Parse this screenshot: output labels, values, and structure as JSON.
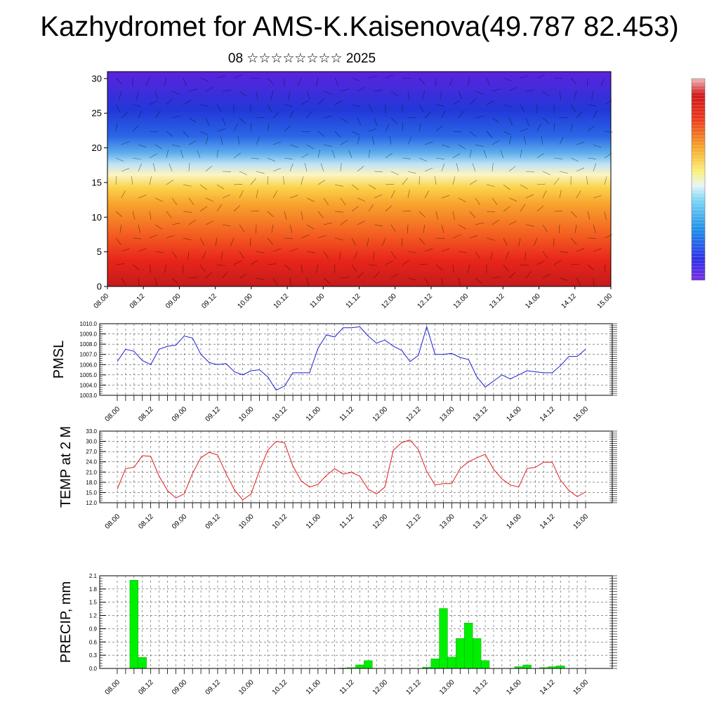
{
  "title": "Kazhydromet for AMS-K.Kaisenova(49.787 82.453)",
  "subtitle": "08 ☆☆☆☆☆☆☆☆ 2025",
  "colors": {
    "pressure_line": "#1f1fd6",
    "temperature_line": "#e31a1c",
    "precip_bar": "#00ee00",
    "precip_bar_edge": "#1a8f1a"
  },
  "chart_data": [
    {
      "type": "heatmap",
      "ylabel": "",
      "ylim": [
        0,
        31
      ],
      "yticks": [
        0,
        5,
        10,
        15,
        20,
        25,
        30
      ],
      "xticks": [
        "08.00",
        "08.12",
        "09.00",
        "09.12",
        "10.00",
        "10.12",
        "11.00",
        "11.12",
        "12.00",
        "12.12",
        "13.00",
        "13.12",
        "14.00",
        "14.12",
        "15.00"
      ],
      "overlay": "wind vectors",
      "colorbar": "rainbow (purple → blue → cyan → yellow → red), no tick labels"
    },
    {
      "type": "line",
      "ylabel": "PMSL",
      "ylim": [
        1003.0,
        1010.0
      ],
      "yticks": [
        "1003.0",
        "1004.0",
        "1005.0",
        "1006.0",
        "1007.0",
        "1008.0",
        "1009.0",
        "1010.0"
      ],
      "xticks": [
        "08.00",
        "08.12",
        "09.00",
        "09.12",
        "10.00",
        "10.12",
        "11.00",
        "11.12",
        "12.00",
        "12.12",
        "13.00",
        "13.12",
        "14.00",
        "14.12",
        "15.00"
      ],
      "x_hours_start": 0,
      "x_hours_step": 3,
      "grid": true,
      "series": [
        {
          "values": [
            1006.3,
            1007.5,
            1007.3,
            1006.4,
            1006.0,
            1007.5,
            1007.8,
            1007.9,
            1008.8,
            1008.6,
            1007.0,
            1006.2,
            1006.0,
            1006.1,
            1005.3,
            1005.0,
            1005.4,
            1005.5,
            1004.8,
            1003.5,
            1003.9,
            1005.2,
            1005.2,
            1005.2,
            1007.6,
            1008.9,
            1008.7,
            1009.6,
            1009.6,
            1009.7,
            1008.8,
            1008.1,
            1008.4,
            1007.8,
            1007.4,
            1006.3,
            1006.9,
            1009.7,
            1007.0,
            1007.0,
            1007.1,
            1006.7,
            1006.5,
            1004.8,
            1003.8,
            1004.4,
            1005.0,
            1004.6,
            1005.0,
            1005.4,
            1005.3,
            1005.2,
            1005.2,
            1005.9,
            1006.8,
            1006.8,
            1007.5
          ]
        }
      ]
    },
    {
      "type": "line",
      "ylabel": "TEMP at 2 M",
      "ylim": [
        12.0,
        33.0
      ],
      "yticks": [
        "12.0",
        "15.0",
        "18.0",
        "21.0",
        "24.0",
        "27.0",
        "30.0",
        "33.0"
      ],
      "xticks": [
        "08.00",
        "08.12",
        "09.00",
        "09.12",
        "10.00",
        "10.12",
        "11.00",
        "11.12",
        "12.00",
        "12.12",
        "13.00",
        "13.12",
        "14.00",
        "14.12",
        "15.00"
      ],
      "x_hours_start": 0,
      "x_hours_step": 3,
      "grid": true,
      "series": [
        {
          "values": [
            16.0,
            22.0,
            22.4,
            25.8,
            25.6,
            19.8,
            15.6,
            13.4,
            14.6,
            20.6,
            25.2,
            26.8,
            26.0,
            20.6,
            15.8,
            12.8,
            14.6,
            21.4,
            27.4,
            30.0,
            29.6,
            22.8,
            18.4,
            16.6,
            17.4,
            20.0,
            22.0,
            20.4,
            20.9,
            19.8,
            16.0,
            14.6,
            16.6,
            27.4,
            29.6,
            30.4,
            27.6,
            21.2,
            17.2,
            17.6,
            17.6,
            22.0,
            24.0,
            25.2,
            26.2,
            21.8,
            19.0,
            17.2,
            16.6,
            22.0,
            22.4,
            23.9,
            23.9,
            18.6,
            15.6,
            13.8,
            15.2
          ]
        }
      ]
    },
    {
      "type": "bar",
      "ylabel": "PRECIP, mm",
      "ylim": [
        0.0,
        2.1
      ],
      "yticks": [
        "0.0",
        "0.3",
        "0.6",
        "0.9",
        "1.2",
        "1.5",
        "1.8",
        "2.1"
      ],
      "xticks": [
        "08.00",
        "08.12",
        "09.00",
        "09.12",
        "10.00",
        "10.12",
        "11.00",
        "11.12",
        "12.00",
        "12.12",
        "13.00",
        "13.12",
        "14.00",
        "14.12",
        "15.00"
      ],
      "x_hours_start": 0,
      "x_hours_step": 3,
      "grid": true,
      "series": [
        {
          "values": [
            0,
            0,
            2.0,
            0.25,
            0,
            0,
            0,
            0,
            0,
            0,
            0,
            0,
            0,
            0,
            0,
            0,
            0,
            0,
            0,
            0,
            0,
            0,
            0,
            0,
            0,
            0,
            0,
            0.01,
            0.02,
            0.08,
            0.18,
            0,
            0,
            0,
            0,
            0,
            0,
            0.03,
            0.22,
            1.36,
            0.26,
            0.68,
            1.03,
            0.68,
            0.18,
            0,
            0,
            0,
            0.04,
            0.08,
            0,
            0.02,
            0.04,
            0.06,
            0,
            0,
            0
          ]
        }
      ]
    }
  ]
}
